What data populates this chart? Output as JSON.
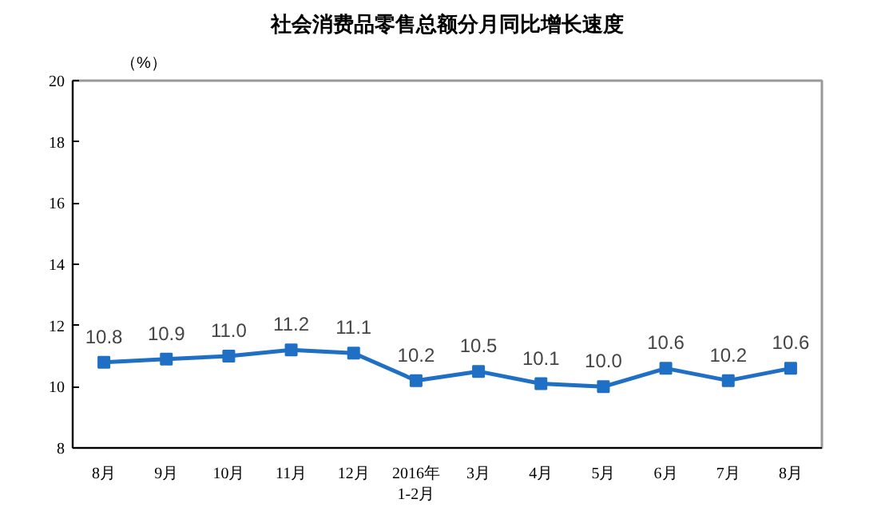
{
  "chart_data": {
    "type": "line",
    "title": "社会消费品零售总额分月同比增长速度",
    "ylabel": "（%）",
    "categories": [
      "8月",
      "9月",
      "10月",
      "11月",
      "12月",
      "2016年\n1-2月",
      "3月",
      "4月",
      "5月",
      "6月",
      "7月",
      "8月"
    ],
    "series": [
      {
        "color": "#1f6fc5",
        "values": [
          10.8,
          10.9,
          11.0,
          11.2,
          11.1,
          10.2,
          10.5,
          10.1,
          10.0,
          10.6,
          10.2,
          10.6
        ],
        "value_labels": [
          "10.8",
          "10.9",
          "11.0",
          "11.2",
          "11.1",
          "10.2",
          "10.5",
          "10.1",
          "10.0",
          "10.6",
          "10.2",
          "10.6"
        ]
      }
    ],
    "ylim": [
      8,
      20
    ],
    "yticks": [
      8,
      10,
      12,
      14,
      16,
      18,
      20
    ],
    "grid": false,
    "marker": "square",
    "line_style": "solid"
  }
}
